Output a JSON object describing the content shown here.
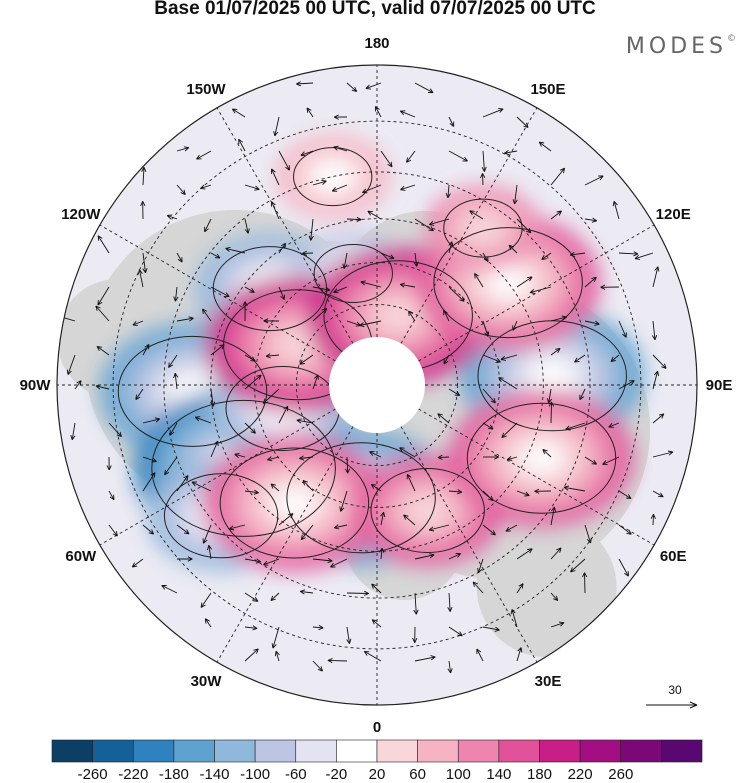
{
  "title": "Base 01/07/2025 00 UTC, valid 07/07/2025 00 UTC",
  "brand": "MODES",
  "brand_mark": "©",
  "map": {
    "projection": "north-polar-stereographic",
    "longitude_labels": [
      {
        "text": "180",
        "lon": 180
      },
      {
        "text": "150E",
        "lon": 150
      },
      {
        "text": "120E",
        "lon": 120
      },
      {
        "text": "90E",
        "lon": 90
      },
      {
        "text": "60E",
        "lon": 60
      },
      {
        "text": "30E",
        "lon": 30
      },
      {
        "text": "0",
        "lon": 0
      },
      {
        "text": "30W",
        "lon": -30
      },
      {
        "text": "60W",
        "lon": -60
      },
      {
        "text": "90W",
        "lon": -90
      },
      {
        "text": "120W",
        "lon": -120
      },
      {
        "text": "150W",
        "lon": -150
      }
    ],
    "reference_vector": {
      "label": "30"
    },
    "colors": {
      "coast": "#333333",
      "land": "#d6d6d6",
      "ocean": "#f0f0f0"
    },
    "anomaly_centers": [
      {
        "name": "negative-center-90w",
        "lon": -88,
        "lat": 46,
        "value": -160
      },
      {
        "name": "negative-center-70w",
        "lon": -58,
        "lat": 52,
        "value": -200
      },
      {
        "name": "negative-center-75w-b",
        "lon": -76,
        "lat": 66,
        "value": -140
      },
      {
        "name": "negative-center-120w",
        "lon": -132,
        "lat": 55,
        "value": -140
      },
      {
        "name": "negative-center-160w",
        "lon": -168,
        "lat": 62,
        "value": -100
      },
      {
        "name": "negative-center-10e",
        "lon": -8,
        "lat": 62,
        "value": -160
      },
      {
        "name": "negative-center-95e",
        "lon": 93,
        "lat": 48,
        "value": -180
      },
      {
        "name": "negative-center-50w",
        "lon": -50,
        "lat": 42,
        "value": -120
      },
      {
        "name": "positive-center-110w",
        "lon": -117,
        "lat": 68,
        "value": 180
      },
      {
        "name": "positive-center-40w",
        "lon": -35,
        "lat": 55,
        "value": 160
      },
      {
        "name": "positive-center-20e",
        "lon": 22,
        "lat": 57,
        "value": 140
      },
      {
        "name": "positive-center-160e",
        "lon": 163,
        "lat": 72,
        "value": 180
      },
      {
        "name": "positive-center-130e",
        "lon": 128,
        "lat": 50,
        "value": 160
      },
      {
        "name": "positive-center-65e",
        "lon": 66,
        "lat": 47,
        "value": 160
      },
      {
        "name": "positive-center-170w",
        "lon": -168,
        "lat": 40,
        "value": 80
      },
      {
        "name": "positive-center-145e",
        "lon": 146,
        "lat": 45,
        "value": 100
      }
    ]
  },
  "colorbar": {
    "labels": [
      "-260",
      "-220",
      "-180",
      "-140",
      "-100",
      "-60",
      "-20",
      "20",
      "60",
      "100",
      "140",
      "180",
      "220",
      "260"
    ],
    "colors": [
      "#0c3f66",
      "#14619a",
      "#2f82c0",
      "#5ea2d2",
      "#90b7dc",
      "#bcc6e4",
      "#e3e3f2",
      "#ffffff",
      "#f9d6da",
      "#f5b3c4",
      "#ee85ae",
      "#e2529b",
      "#c91d87",
      "#a30f83",
      "#7a0877",
      "#580870"
    ]
  }
}
